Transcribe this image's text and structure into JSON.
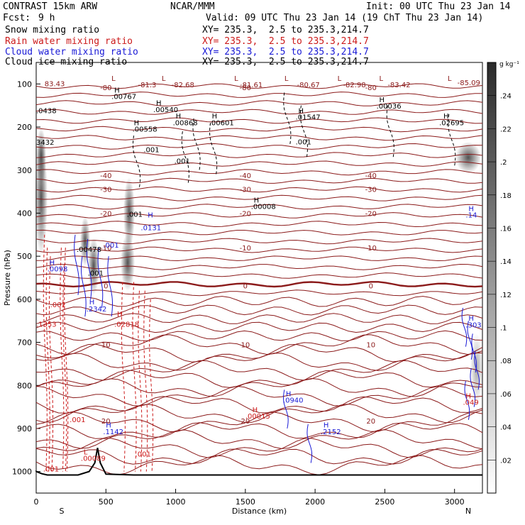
{
  "header": {
    "model": "CONTRAST 15km ARW",
    "forecast_label": "Fcst:",
    "forecast_value": "9 h",
    "center": "NCAR/MMM",
    "init": "Init: 00 UTC Thu 23 Jan 14",
    "valid": "Valid: 09 UTC Thu 23 Jan 14 (19 ChT Thu 23 Jan 14)"
  },
  "legend": [
    {
      "name": "Snow mixing ratio",
      "xy": "XY= 235.3,  2.5 to 235.3,214.7",
      "color": "#000000"
    },
    {
      "name": "Rain water mixing ratio",
      "xy": "XY= 235.3,  2.5 to 235.3,214.7",
      "color": "#cc1a1a"
    },
    {
      "name": "Cloud water mixing ratio",
      "xy": "XY= 235.3,  2.5 to 235.3,214.7",
      "color": "#1a1ad6"
    },
    {
      "name": "Cloud ice mixing ratio",
      "xy": "XY= 235.3,  2.5 to 235.3,214.7",
      "color": "#000000"
    }
  ],
  "colorbar": {
    "unit": "g kg⁻¹",
    "ticks": [
      ".24",
      ".22",
      ".2",
      ".18",
      ".16",
      ".14",
      ".12",
      ".1",
      ".08",
      ".06",
      ".04",
      ".02"
    ]
  },
  "chart_data": {
    "type": "cross-section",
    "xlabel": "Distance (km)",
    "ylabel": "Pressure (hPa)",
    "xlim": [
      0,
      3200
    ],
    "ylim": [
      1050,
      50
    ],
    "xticks": [
      "0",
      "500",
      "1000",
      "1500",
      "2000",
      "2500",
      "3000"
    ],
    "xtick_values": [
      0,
      500,
      1000,
      1500,
      2000,
      2500,
      3000
    ],
    "yticks": [
      "100",
      "200",
      "300",
      "400",
      "500",
      "600",
      "700",
      "800",
      "900",
      "1000"
    ],
    "ytick_values": [
      100,
      200,
      300,
      400,
      500,
      600,
      700,
      800,
      900,
      1000
    ],
    "left_end": "S",
    "right_end": "N",
    "temperature_contours": [
      {
        "label": "-80",
        "level": 108
      },
      {
        "label": "-40",
        "level": 312
      },
      {
        "label": "-30",
        "level": 344
      },
      {
        "label": "-20",
        "level": 400
      },
      {
        "label": "-10",
        "level": 480
      },
      {
        "label": "0",
        "level": 568
      },
      {
        "label": "10",
        "level": 705
      },
      {
        "label": "20",
        "level": 882
      }
    ],
    "annotations": [
      {
        "text": "83.43",
        "x": 60,
        "p": 105,
        "color": "#8b1a1a"
      },
      {
        "text": "L",
        "x": 540,
        "p": 93,
        "color": "#8b1a1a"
      },
      {
        "text": "-81.3",
        "x": 730,
        "p": 108,
        "color": "#8b1a1a"
      },
      {
        "text": "L",
        "x": 900,
        "p": 93,
        "color": "#8b1a1a"
      },
      {
        "text": "-82.68",
        "x": 970,
        "p": 108,
        "color": "#8b1a1a"
      },
      {
        "text": "L",
        "x": 1420,
        "p": 93,
        "color": "#8b1a1a"
      },
      {
        "text": "-81.61",
        "x": 1460,
        "p": 108,
        "color": "#8b1a1a"
      },
      {
        "text": "L",
        "x": 1780,
        "p": 93,
        "color": "#8b1a1a"
      },
      {
        "text": "-80.67",
        "x": 1870,
        "p": 108,
        "color": "#8b1a1a"
      },
      {
        "text": "L",
        "x": 2160,
        "p": 93,
        "color": "#8b1a1a"
      },
      {
        "text": "-82.98",
        "x": 2200,
        "p": 108,
        "color": "#8b1a1a"
      },
      {
        "text": "L",
        "x": 2460,
        "p": 93,
        "color": "#8b1a1a"
      },
      {
        "text": "-83.42",
        "x": 2520,
        "p": 108,
        "color": "#8b1a1a"
      },
      {
        "text": "L",
        "x": 2950,
        "p": 93,
        "color": "#8b1a1a"
      },
      {
        "text": "-85.09",
        "x": 3020,
        "p": 103,
        "color": "#8b1a1a"
      },
      {
        "text": "H",
        "x": 560,
        "p": 120,
        "color": "#000000"
      },
      {
        "text": ".00767",
        "x": 540,
        "p": 135,
        "color": "#000000"
      },
      {
        "text": "H",
        "x": 860,
        "p": 150,
        "color": "#000000"
      },
      {
        "text": ".00540",
        "x": 840,
        "p": 165,
        "color": "#000000"
      },
      {
        "text": "H",
        "x": 2460,
        "p": 142,
        "color": "#000000"
      },
      {
        "text": ".00036",
        "x": 2440,
        "p": 157,
        "color": "#000000"
      },
      {
        "text": ".0438",
        "x": 0,
        "p": 168,
        "color": "#000000"
      },
      {
        "text": "H",
        "x": 1880,
        "p": 168,
        "color": "#000000"
      },
      {
        "text": ".01547",
        "x": 1860,
        "p": 183,
        "color": "#000000"
      },
      {
        "text": "H",
        "x": 1000,
        "p": 180,
        "color": "#000000"
      },
      {
        "text": ".00868",
        "x": 980,
        "p": 196,
        "color": "#000000"
      },
      {
        "text": "H",
        "x": 1260,
        "p": 180,
        "color": "#000000"
      },
      {
        "text": ".00601",
        "x": 1240,
        "p": 196,
        "color": "#000000"
      },
      {
        "text": "H",
        "x": 2920,
        "p": 180,
        "color": "#000000"
      },
      {
        "text": ".02695",
        "x": 2890,
        "p": 196,
        "color": "#000000"
      },
      {
        "text": "H",
        "x": 700,
        "p": 196,
        "color": "#000000"
      },
      {
        "text": ".00558",
        "x": 690,
        "p": 211,
        "color": "#000000"
      },
      {
        "text": "3432",
        "x": 0,
        "p": 241,
        "color": "#000000"
      },
      {
        "text": ".001",
        "x": 1860,
        "p": 240,
        "color": "#000000"
      },
      {
        "text": ".001",
        "x": 770,
        "p": 258,
        "color": "#000000"
      },
      {
        "text": ".001",
        "x": 990,
        "p": 285,
        "color": "#000000"
      },
      {
        "text": "H",
        "x": 1560,
        "p": 375,
        "color": "#000000"
      },
      {
        "text": ".00008",
        "x": 1540,
        "p": 390,
        "color": "#000000"
      },
      {
        "text": ".001",
        "x": 650,
        "p": 408,
        "color": "#000000"
      },
      {
        "text": "H",
        "x": 800,
        "p": 410,
        "color": "#1a1ad6"
      },
      {
        "text": ".0131",
        "x": 750,
        "p": 440,
        "color": "#1a1ad6"
      },
      {
        "text": "H",
        "x": 3100,
        "p": 395,
        "color": "#1a1ad6"
      },
      {
        "text": ".14",
        "x": 3080,
        "p": 410,
        "color": "#1a1ad6"
      },
      {
        "text": ".001",
        "x": 480,
        "p": 480,
        "color": "#1a1ad6"
      },
      {
        "text": ".00478",
        "x": 290,
        "p": 490,
        "color": "#000000"
      },
      {
        "text": "H",
        "x": 95,
        "p": 520,
        "color": "#1a1ad6"
      },
      {
        "text": ".0098",
        "x": 80,
        "p": 535,
        "color": "#1a1ad6"
      },
      {
        "text": ".001",
        "x": 370,
        "p": 545,
        "color": "#000000"
      },
      {
        "text": ".001",
        "x": 100,
        "p": 618,
        "color": "#cc1a1a"
      },
      {
        "text": "H",
        "x": 380,
        "p": 612,
        "color": "#1a1ad6"
      },
      {
        "text": ".2342",
        "x": 360,
        "p": 628,
        "color": "#1a1ad6"
      },
      {
        "text": "H",
        "x": 580,
        "p": 640,
        "color": "#cc1a1a"
      },
      {
        "text": ".1353",
        "x": 0,
        "p": 664,
        "color": "#cc1a1a"
      },
      {
        "text": ".02818",
        "x": 560,
        "p": 664,
        "color": "#cc1a1a"
      },
      {
        "text": "H",
        "x": 3100,
        "p": 650,
        "color": "#1a1ad6"
      },
      {
        "text": ".303",
        "x": 3080,
        "p": 665,
        "color": "#1a1ad6"
      },
      {
        "text": "H",
        "x": 1790,
        "p": 825,
        "color": "#1a1ad6"
      },
      {
        "text": ".0940",
        "x": 1770,
        "p": 840,
        "color": "#1a1ad6"
      },
      {
        "text": "H",
        "x": 3080,
        "p": 830,
        "color": "#cc1a1a"
      },
      {
        "text": ".049",
        "x": 3060,
        "p": 845,
        "color": "#cc1a1a"
      },
      {
        "text": "H",
        "x": 1550,
        "p": 862,
        "color": "#cc1a1a"
      },
      {
        "text": ".00015",
        "x": 1500,
        "p": 877,
        "color": "#cc1a1a"
      },
      {
        "text": ".001",
        "x": 240,
        "p": 885,
        "color": "#cc1a1a"
      },
      {
        "text": "H",
        "x": 500,
        "p": 898,
        "color": "#1a1ad6"
      },
      {
        "text": ".1142",
        "x": 480,
        "p": 913,
        "color": "#1a1ad6"
      },
      {
        "text": "H",
        "x": 2060,
        "p": 898,
        "color": "#1a1ad6"
      },
      {
        "text": ".2152",
        "x": 2040,
        "p": 913,
        "color": "#1a1ad6"
      },
      {
        "text": ".001",
        "x": 710,
        "p": 965,
        "color": "#cc1a1a"
      },
      {
        "text": "L",
        "x": 340,
        "p": 960,
        "color": "#cc1a1a"
      },
      {
        "text": ".00089",
        "x": 320,
        "p": 975,
        "color": "#cc1a1a"
      },
      {
        "text": ".001",
        "x": 50,
        "p": 1000,
        "color": "#cc1a1a"
      }
    ]
  }
}
